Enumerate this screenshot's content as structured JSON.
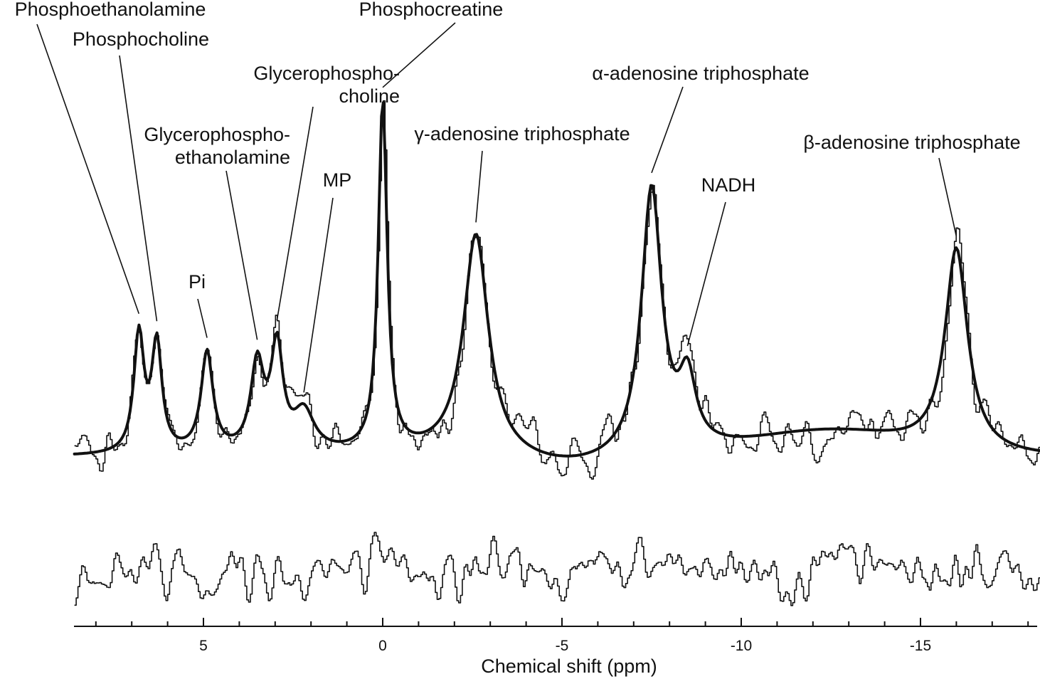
{
  "chart_data": {
    "type": "line",
    "xlabel": "Chemical shift (ppm)",
    "xlim": [
      8.6,
      -18.4
    ],
    "x_reversed": true,
    "x_ticks": [
      5,
      0,
      -5,
      -10,
      -15
    ],
    "x_tick_labels": [
      "5",
      "0",
      "-5",
      "-10",
      "-15"
    ],
    "grid": false,
    "baseline": 0.0,
    "peaks": [
      {
        "name": "Phosphoethanolamine",
        "ppm": 6.8,
        "amp": 0.6,
        "width": 0.17
      },
      {
        "name": "Phosphocholine",
        "ppm": 6.3,
        "amp": 0.55,
        "width": 0.17
      },
      {
        "name": "Pi",
        "ppm": 4.9,
        "amp": 0.51,
        "width": 0.2
      },
      {
        "name": "Glycerophosphoethanolamine",
        "ppm": 3.5,
        "amp": 0.44,
        "width": 0.22
      },
      {
        "name": "Glycerophosphocholine",
        "ppm": 2.95,
        "amp": 0.52,
        "width": 0.2
      },
      {
        "name": "MP",
        "ppm": 2.2,
        "amp": 0.2,
        "width": 0.35
      },
      {
        "name": "Phosphocreatine",
        "ppm": 0.0,
        "amp": 1.78,
        "width": 0.15
      },
      {
        "name": "γ-adenosine triphosphate",
        "ppm": -2.6,
        "amp": 1.13,
        "width": 0.42
      },
      {
        "name": "α-adenosine triphosphate",
        "ppm": -7.5,
        "amp": 1.36,
        "width": 0.34
      },
      {
        "name": "NADH",
        "ppm": -8.5,
        "amp": 0.34,
        "width": 0.28
      },
      {
        "name": "β-adenosine triphosphate",
        "ppm": -16.0,
        "amp": 1.03,
        "width": 0.38
      }
    ],
    "series": [
      {
        "style": "thin",
        "description_key": "measured"
      },
      {
        "style": "thick",
        "description_key": "fit"
      },
      {
        "style": "thin",
        "description_key": "residual"
      }
    ],
    "annotations": [
      {
        "lines": [
          "Phosphoethanolamine"
        ],
        "ppm": 6.8
      },
      {
        "lines": [
          "Phosphocholine"
        ],
        "ppm": 6.3
      },
      {
        "lines": [
          "Pi"
        ],
        "ppm": 4.9
      },
      {
        "lines": [
          "Glycerophospho-",
          "ethanolamine"
        ],
        "ppm": 3.5
      },
      {
        "lines": [
          "Glycerophospho-",
          "choline"
        ],
        "ppm": 2.95
      },
      {
        "lines": [
          "MP"
        ],
        "ppm": 2.2
      },
      {
        "lines": [
          "Phosphocreatine"
        ],
        "ppm": 0.0
      },
      {
        "lines": [
          "γ-adenosine triphosphate"
        ],
        "ppm": -2.6
      },
      {
        "lines": [
          "α-adenosine triphosphate"
        ],
        "ppm": -7.5
      },
      {
        "lines": [
          "NADH"
        ],
        "ppm": -8.5
      },
      {
        "lines": [
          "β-adenosine triphosphate"
        ],
        "ppm": -16.0
      }
    ]
  }
}
